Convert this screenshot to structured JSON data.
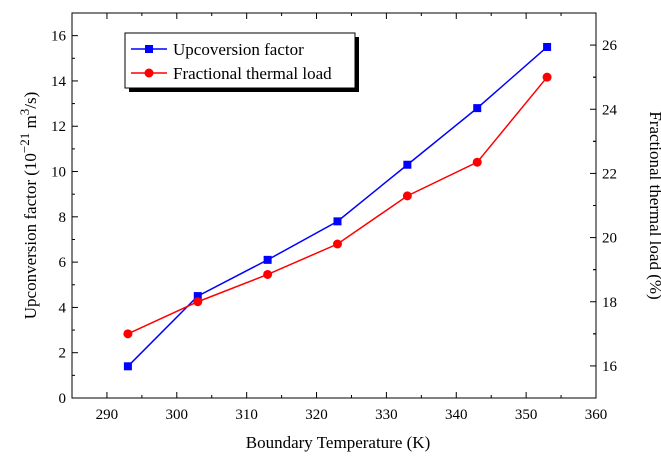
{
  "chart_data": {
    "type": "line",
    "xlabel": "Boundary Temperature (K)",
    "ylabel_left": {
      "base": "Upconversion factor (10",
      "exp1": "−21",
      "mid": " m",
      "exp2": "3",
      "tail": "/s)"
    },
    "ylabel_right": "Fractional thermal load (%)",
    "xlim": [
      285,
      360
    ],
    "xticks": [
      290,
      300,
      310,
      320,
      330,
      340,
      350,
      360
    ],
    "ylim_left": [
      0,
      17
    ],
    "yticks_left": [
      0,
      2,
      4,
      6,
      8,
      10,
      12,
      14,
      16
    ],
    "ylim_right": [
      15,
      27
    ],
    "yticks_right": [
      16,
      18,
      20,
      22,
      24,
      26
    ],
    "grid": false,
    "legend_position": "top-left",
    "x": [
      293,
      303,
      313,
      323,
      333,
      343,
      353
    ],
    "series": [
      {
        "name": "Upcoversion factor",
        "axis": "left",
        "color": "#0000ff",
        "marker": "square",
        "values": [
          1.4,
          4.5,
          6.1,
          7.8,
          10.3,
          12.8,
          15.5
        ]
      },
      {
        "name": "Fractional thermal load",
        "axis": "right",
        "color": "#ff0000",
        "marker": "circle",
        "values": [
          17.0,
          18.0,
          18.85,
          19.8,
          21.3,
          22.35,
          25.0
        ]
      }
    ]
  }
}
